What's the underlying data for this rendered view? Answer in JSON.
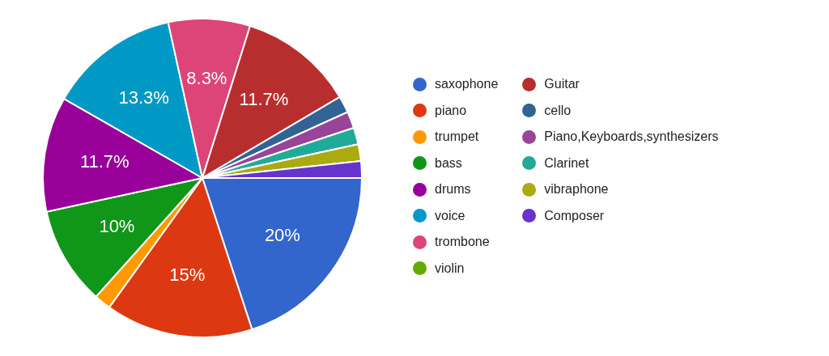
{
  "chart_data": {
    "type": "pie",
    "categories": [
      "saxophone",
      "piano",
      "trumpet",
      "bass",
      "drums",
      "voice",
      "trombone",
      "violin",
      "Guitar",
      "cello",
      "Piano,Keyboards,synthesizers",
      "Clarinet",
      "vibraphone",
      "Composer"
    ],
    "values": [
      20,
      15,
      1.7,
      10,
      11.7,
      13.3,
      8.3,
      0,
      11.7,
      1.7,
      1.7,
      1.7,
      1.7,
      1.7
    ],
    "value_labels": [
      "20%",
      "15%",
      null,
      "10%",
      "11.7%",
      "13.3%",
      "8.3%",
      null,
      "11.7%",
      null,
      null,
      null,
      null,
      null
    ],
    "colors": [
      "#3366cc",
      "#dc3912",
      "#ff9900",
      "#109618",
      "#990099",
      "#0099c6",
      "#dd4477",
      "#66aa00",
      "#b82e2e",
      "#316395",
      "#994499",
      "#22aa99",
      "#aaaa11",
      "#6633cc"
    ],
    "legend": "right"
  }
}
